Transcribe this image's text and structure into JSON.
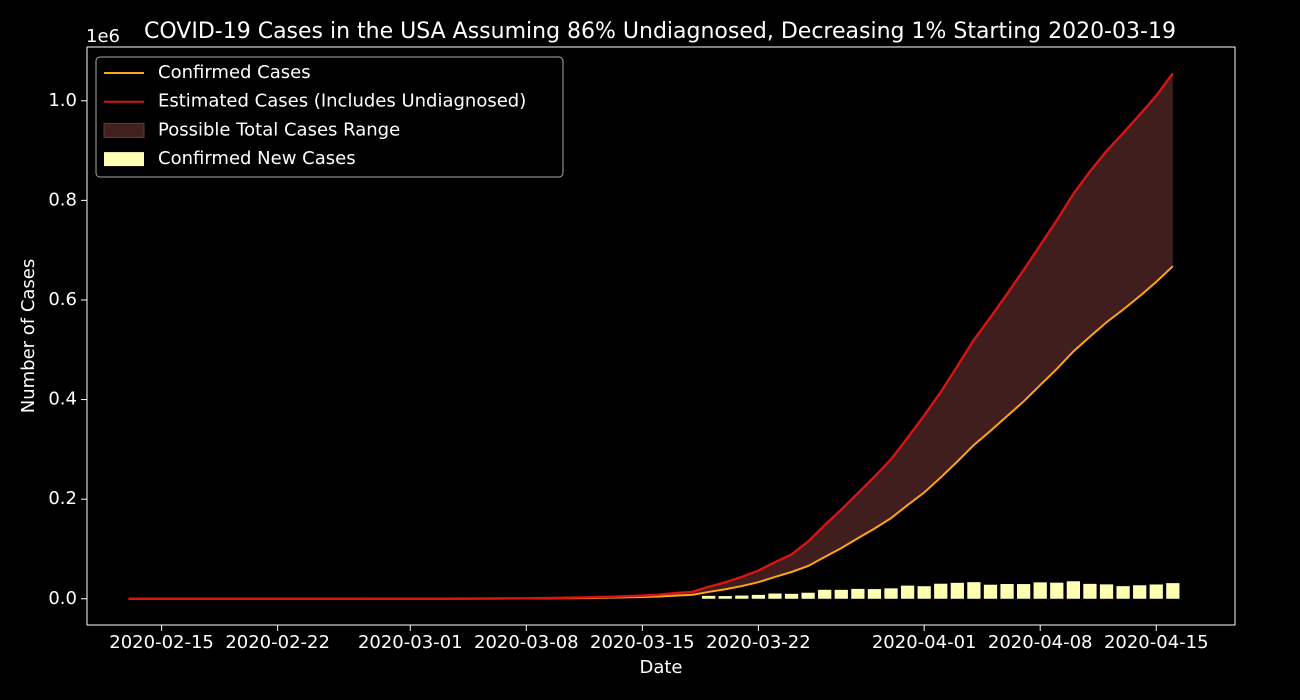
{
  "chart_data": {
    "type": "line",
    "title": "COVID-19 Cases in the USA Assuming 86% Undiagnosed, Decreasing 1% Starting 2020-03-19",
    "x_label": "Date",
    "y_label": "Number of Cases",
    "y_offset_label": "1e6",
    "x": [
      "2020-02-13",
      "2020-02-14",
      "2020-02-15",
      "2020-02-16",
      "2020-02-17",
      "2020-02-18",
      "2020-02-19",
      "2020-02-20",
      "2020-02-21",
      "2020-02-22",
      "2020-02-23",
      "2020-02-24",
      "2020-02-25",
      "2020-02-26",
      "2020-02-27",
      "2020-02-28",
      "2020-02-29",
      "2020-03-01",
      "2020-03-02",
      "2020-03-03",
      "2020-03-04",
      "2020-03-05",
      "2020-03-06",
      "2020-03-07",
      "2020-03-08",
      "2020-03-09",
      "2020-03-10",
      "2020-03-11",
      "2020-03-12",
      "2020-03-13",
      "2020-03-14",
      "2020-03-15",
      "2020-03-16",
      "2020-03-17",
      "2020-03-18",
      "2020-03-19",
      "2020-03-20",
      "2020-03-21",
      "2020-03-22",
      "2020-03-23",
      "2020-03-24",
      "2020-03-25",
      "2020-03-26",
      "2020-03-27",
      "2020-03-28",
      "2020-03-29",
      "2020-03-30",
      "2020-03-31",
      "2020-04-01",
      "2020-04-02",
      "2020-04-03",
      "2020-04-04",
      "2020-04-05",
      "2020-04-06",
      "2020-04-07",
      "2020-04-08",
      "2020-04-09",
      "2020-04-10",
      "2020-04-11",
      "2020-04-12",
      "2020-04-13",
      "2020-04-14",
      "2020-04-15",
      "2020-04-16"
    ],
    "series": [
      {
        "name": "Confirmed Cases",
        "kind": "line",
        "color": "#ffa31a",
        "values": [
          14,
          15,
          15,
          15,
          15,
          15,
          15,
          15,
          35,
          35,
          35,
          53,
          53,
          59,
          60,
          62,
          68,
          75,
          100,
          124,
          158,
          221,
          319,
          435,
          541,
          704,
          994,
          1301,
          1630,
          2183,
          2770,
          3613,
          4596,
          6344,
          7801,
          13680,
          19101,
          25493,
          33276,
          43847,
          53740,
          65778,
          83836,
          101657,
          121465,
          140909,
          161831,
          188172,
          213372,
          243616,
          275586,
          308850,
          337072,
          366667,
          396223,
          429052,
          461437,
          496535,
          526396,
          555313,
          580619,
          607670,
          636350,
          667801
        ]
      },
      {
        "name": "Estimated Cases (Includes Undiagnosed)",
        "kind": "line",
        "color": "#d81414",
        "values": [
          25,
          25,
          25,
          25,
          25,
          25,
          25,
          25,
          25,
          25,
          25,
          27,
          27,
          30,
          35,
          40,
          45,
          55,
          100,
          180,
          270,
          400,
          550,
          770,
          970,
          1300,
          1800,
          2300,
          3000,
          3900,
          4900,
          6300,
          8200,
          11400,
          13800,
          24000,
          33000,
          44000,
          56500,
          73500,
          89000,
          115000,
          148000,
          179000,
          212000,
          245000,
          280000,
          323000,
          368000,
          415000,
          467000,
          520000,
          565000,
          612000,
          660000,
          710000,
          760000,
          813000,
          858000,
          899000,
          935000,
          972000,
          1010000,
          1055000
        ]
      },
      {
        "name": "Possible Total Cases Range",
        "kind": "range",
        "color": "#42201f",
        "between": [
          0,
          1
        ]
      },
      {
        "name": "Confirmed New Cases",
        "kind": "bar",
        "color": "#ffffb3",
        "values": [
          null,
          null,
          null,
          null,
          null,
          null,
          null,
          null,
          null,
          null,
          null,
          null,
          null,
          null,
          null,
          null,
          null,
          null,
          null,
          null,
          null,
          null,
          null,
          null,
          null,
          null,
          null,
          null,
          null,
          null,
          null,
          null,
          null,
          null,
          null,
          5900,
          5400,
          6400,
          7800,
          10500,
          9900,
          12100,
          18000,
          17900,
          19800,
          19400,
          20900,
          26400,
          25200,
          30200,
          32000,
          33300,
          28200,
          29600,
          29500,
          32900,
          32300,
          35100,
          29900,
          28900,
          25300,
          27100,
          28700,
          31400
        ]
      }
    ],
    "xlim": [
      "2020-02-10T12:00",
      "2020-04-19T18:00"
    ],
    "xticks": [
      "2020-02-15",
      "2020-02-22",
      "2020-03-01",
      "2020-03-08",
      "2020-03-15",
      "2020-03-22",
      "2020-04-01",
      "2020-04-08",
      "2020-04-15"
    ],
    "ylim": [
      -52700,
      1108000
    ],
    "yticks": [
      {
        "value": 0,
        "label": "0.0"
      },
      {
        "value": 200000,
        "label": "0.2"
      },
      {
        "value": 400000,
        "label": "0.4"
      },
      {
        "value": 600000,
        "label": "0.6"
      },
      {
        "value": 800000,
        "label": "0.8"
      },
      {
        "value": 1000000,
        "label": "1.0"
      }
    ],
    "legend": "upper-left",
    "background": "#000000"
  }
}
